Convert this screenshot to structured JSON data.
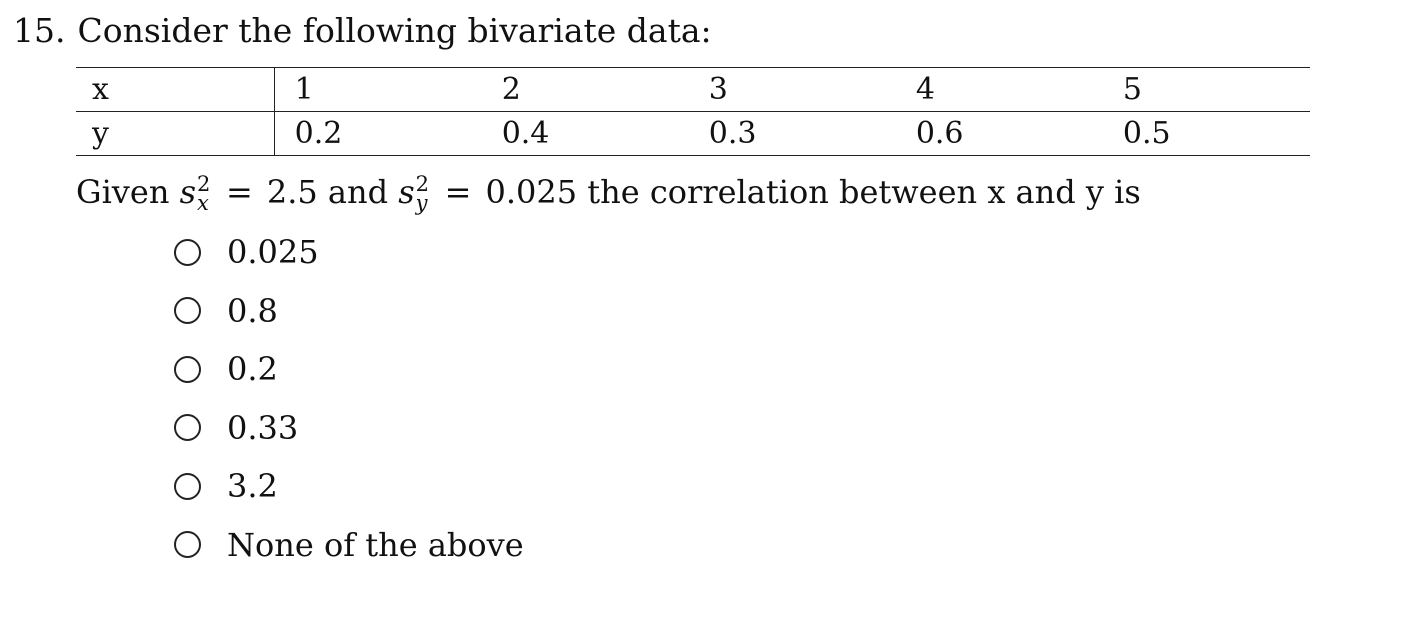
{
  "question": {
    "number": "15.",
    "prompt": "Consider the following bivariate data:"
  },
  "table": {
    "rows": [
      {
        "label": "x",
        "values": [
          "1",
          "2",
          "3",
          "4",
          "5"
        ]
      },
      {
        "label": "y",
        "values": [
          "0.2",
          "0.4",
          "0.3",
          "0.6",
          "0.5"
        ]
      }
    ]
  },
  "given": {
    "prefix": "Given",
    "var_x": {
      "symbol": "s",
      "sup": "2",
      "sub": "x",
      "equals": "=",
      "value": "2.5"
    },
    "conjunction": "and",
    "var_y": {
      "symbol": "s",
      "sup": "2",
      "sub": "y",
      "equals": "=",
      "value": "0.025"
    },
    "suffix": "the correlation between x and y is"
  },
  "options": [
    {
      "label": "0.025",
      "selected": false
    },
    {
      "label": "0.8",
      "selected": false
    },
    {
      "label": "0.2",
      "selected": false
    },
    {
      "label": "0.33",
      "selected": false
    },
    {
      "label": "3.2",
      "selected": false
    },
    {
      "label": "None of the above",
      "selected": false
    }
  ]
}
